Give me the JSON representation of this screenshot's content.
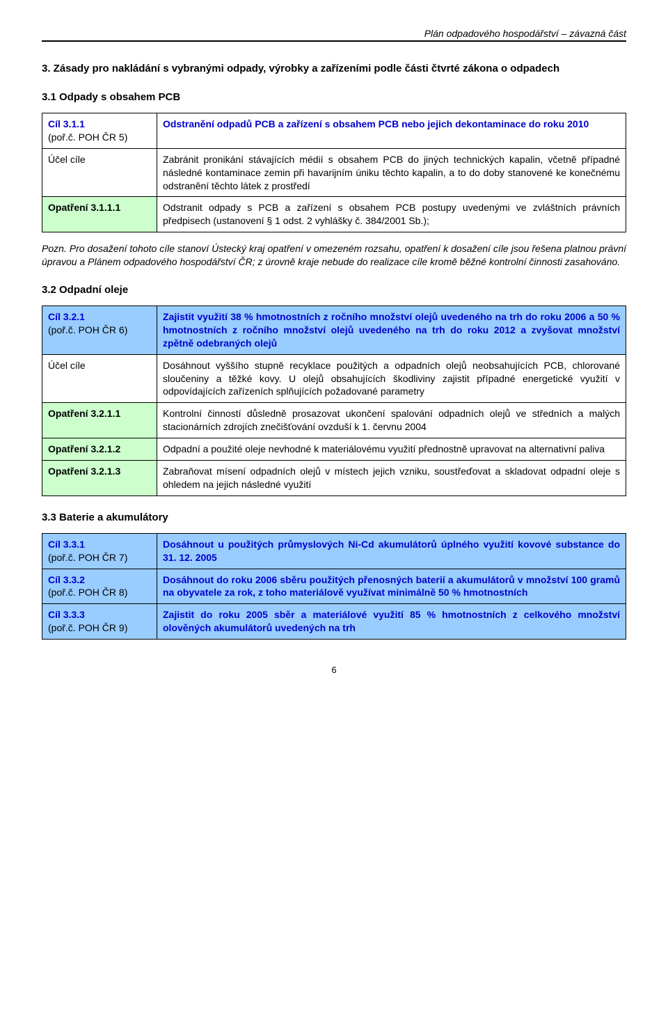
{
  "header": "Plán odpadového hospodářství – závazná část",
  "section3": {
    "title": "3. Zásady pro nakládání s vybranými odpady, výrobky  a zařízeními podle části čtvrté zákona o odpadech",
    "sub1_title": "3.1 Odpady s obsahem PCB",
    "t1": {
      "r1c1a": "Cíl 3.1.1",
      "r1c1b": "(poř.č. POH ČR 5)",
      "r1c2": "Odstranění odpadů PCB a zařízení s obsahem PCB nebo jejich dekontaminace do roku 2010",
      "r2c1": "Účel cíle",
      "r2c2": "Zabránit pronikání stávajících médií s obsahem PCB do jiných technických kapalin, včetně případné následné kontaminace zemin při havarijním úniku těchto kapalin, a to do doby stanovené ke konečnému odstranění těchto látek z prostředí",
      "r3c1": "Opatření 3.1.1.1",
      "r3c2": "Odstranit odpady s PCB a zařízení s obsahem PCB postupy uvedenými ve zvláštních právních předpisech (ustanovení § 1 odst. 2 vyhlášky č. 384/2001 Sb.);"
    },
    "note1": "Pozn. Pro dosažení tohoto cíle stanoví Ústecký kraj   opatření v omezeném rozsahu, opatření k dosažení cíle jsou řešena platnou právní úpravou  a  Plánem odpadového hospodářství ČR; z úrovně kraje nebude do realizace cíle kromě běžné kontrolní činnosti zasahováno.",
    "sub2_title": "3.2 Odpadní oleje",
    "t2": {
      "r1c1a": "Cíl 3.2.1",
      "r1c1b": "(poř.č. POH ČR 6)",
      "r1c2": "Zajistit využití 38 % hmotnostních z ročního množství olejů uvedeného na trh do roku 2006 a 50 % hmotnostních z ročního množství olejů uvedeného na trh do roku 2012 a zvyšovat množství zpětně odebraných olejů",
      "r2c1": "Účel cíle",
      "r2c2": "Dosáhnout vyššího stupně recyklace použitých a odpadních olejů neobsahujících PCB, chlorované sloučeniny a těžké kovy. U olejů obsahujících škodliviny zajistit případné energetické využití v odpovídajících zařízeních splňujících požadované parametry",
      "r3c1": "Opatření 3.2.1.1",
      "r3c2": "Kontrolní činností důsledně prosazovat ukončení spalování odpadních olejů ve středních a malých stacionárních zdrojích znečišťování ovzduší k 1. červnu 2004",
      "r4c1": "Opatření 3.2.1.2",
      "r4c2": "Odpadní a použité oleje nevhodné k materiálovému využití přednostně upravovat na alternativní paliva",
      "r5c1": "Opatření 3.2.1.3",
      "r5c2": "Zabraňovat mísení odpadních olejů v místech jejich vzniku, soustřeďovat a skladovat odpadní oleje s ohledem na jejich následné využití"
    },
    "sub3_title": "3.3 Baterie a akumulátory",
    "t3": {
      "r1c1a": "Cíl 3.3.1",
      "r1c1b": "(poř.č. POH ČR 7)",
      "r1c2": "Dosáhnout u použitých průmyslových  Ni-Cd akumulátorů úplného využití kovové substance do 31. 12. 2005",
      "r2c1a": "Cíl 3.3.2",
      "r2c1b": "(poř.č. POH ČR 8)",
      "r2c2": "Dosáhnout do roku 2006 sběru použitých přenosných baterií a akumulátorů v množství 100 gramů na obyvatele za rok, z toho materiálově využívat minimálně 50 % hmotnostních",
      "r3c1a": "Cíl 3.3.3",
      "r3c1b": "(poř.č. POH ČR 9)",
      "r3c2": "Zajistit do roku 2005 sběr a materiálové využití 85 % hmotnostních z celkového množství olověných akumulátorů uvedených na trh"
    }
  },
  "pagenum": "6"
}
